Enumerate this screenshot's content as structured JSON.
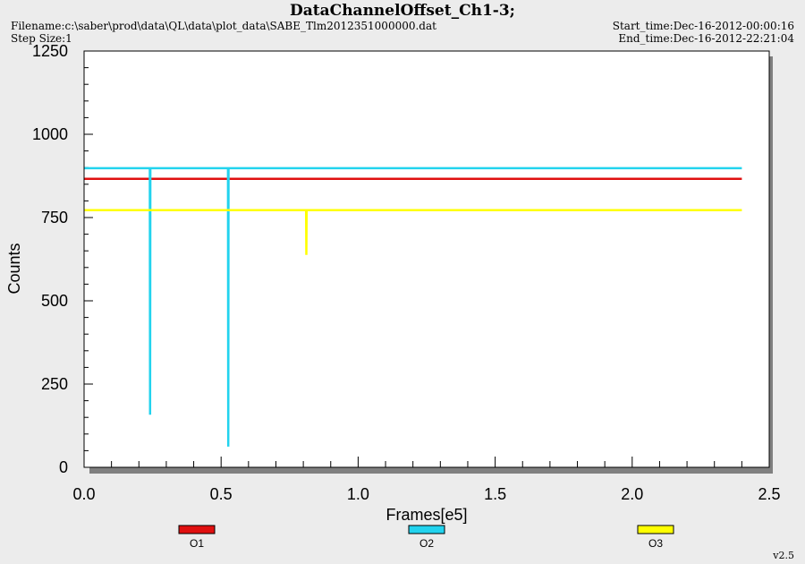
{
  "header": {
    "title": "DataChannelOffset_Ch1-3;",
    "filename": "Filename:c:\\saber\\prod\\data\\QL\\data\\plot_data\\SABE_Tlm2012351000000.dat",
    "step_size": "Step Size:1",
    "start_time": "Start_time:Dec-16-2012-00:00:16",
    "end_time": "End_time:Dec-16-2012-22:21:04",
    "version": "v2.5"
  },
  "chart_data": {
    "type": "line",
    "title": "DataChannelOffset_Ch1-3;",
    "xlabel": "Frames[e5]",
    "ylabel": "Counts",
    "xlim": [
      0,
      2.5
    ],
    "ylim": [
      0,
      1250
    ],
    "x_ticks": [
      0.0,
      0.5,
      1.0,
      1.5,
      2.0,
      2.5
    ],
    "x_tick_labels": [
      "0.0",
      "0.5",
      "1.0",
      "1.5",
      "2.0",
      "2.5"
    ],
    "y_ticks": [
      0,
      250,
      500,
      750,
      1000,
      1250
    ],
    "y_tick_labels": [
      "0",
      "250",
      "500",
      "750",
      "1000",
      "1250"
    ],
    "grid": false,
    "legend_position": "bottom",
    "series": [
      {
        "name": "O1",
        "color": "#e01010",
        "points": [
          [
            0.0,
            866
          ],
          [
            2.4,
            866
          ]
        ]
      },
      {
        "name": "O2",
        "color": "#22d3ee",
        "points": [
          [
            0.0,
            898
          ],
          [
            0.24,
            898
          ],
          [
            0.241,
            158
          ],
          [
            0.242,
            898
          ],
          [
            0.525,
            898
          ],
          [
            0.526,
            62
          ],
          [
            0.527,
            898
          ],
          [
            2.4,
            898
          ]
        ]
      },
      {
        "name": "O3",
        "color": "#ffff00",
        "points": [
          [
            0.0,
            772
          ],
          [
            0.81,
            772
          ],
          [
            0.811,
            638
          ],
          [
            0.812,
            772
          ],
          [
            2.4,
            772
          ]
        ]
      }
    ]
  }
}
